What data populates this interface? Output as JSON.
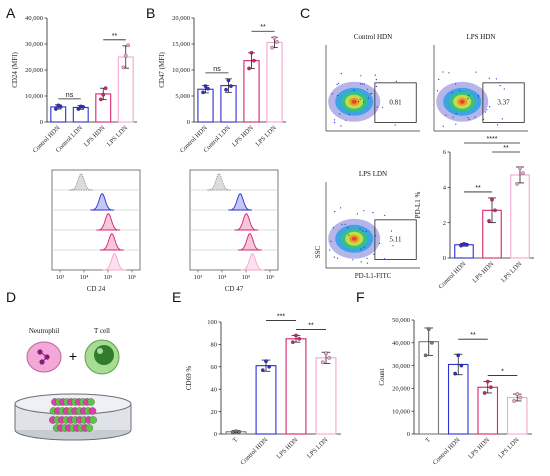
{
  "panels": {
    "A": "A",
    "B": "B",
    "C": "C",
    "D": "D",
    "E": "E",
    "F": "F"
  },
  "colors": {
    "control_hdn": "#2b2fd6",
    "lps_hdn": "#d6246e",
    "lps_ldn": "#f4a6d0",
    "t": "#7a7a7a"
  },
  "chart_data": [
    {
      "id": "A",
      "type": "bar",
      "ylabel": "CD24 (MFI)",
      "ylim": [
        0,
        40000
      ],
      "yticks": [
        "0",
        "10,000",
        "20,000",
        "30,000",
        "40,000"
      ],
      "categories": [
        "Control HDN",
        "Control LDN",
        "LPS HDN",
        "LPS LDN"
      ],
      "values": [
        5800,
        5600,
        10800,
        25000
      ],
      "errors": [
        800,
        700,
        2200,
        4300
      ],
      "points": [
        [
          5000,
          6400,
          5900
        ],
        [
          5000,
          6000,
          5800
        ],
        [
          8700,
          10500,
          13000
        ],
        [
          21000,
          25500,
          29500
        ]
      ],
      "significance": [
        {
          "from": 0,
          "to": 1,
          "label": "ns"
        },
        {
          "from": 2,
          "to": 3,
          "label": "**"
        }
      ]
    },
    {
      "id": "B",
      "type": "bar",
      "ylabel": "CD47 (MFI)",
      "ylim": [
        0,
        20000
      ],
      "yticks": [
        "0",
        "5,000",
        "10,000",
        "15,000",
        "20,000"
      ],
      "categories": [
        "Control HDN",
        "Control LDN",
        "LPS HDN",
        "LPS LDN"
      ],
      "values": [
        6300,
        7000,
        11800,
        15300
      ],
      "errors": [
        700,
        1300,
        1500,
        1000
      ],
      "points": [
        [
          5700,
          6900,
          6400
        ],
        [
          6200,
          8000,
          6900
        ],
        [
          10300,
          13300,
          11800
        ],
        [
          14300,
          16200,
          15400
        ]
      ],
      "significance": [
        {
          "from": 0,
          "to": 1,
          "label": "ns"
        },
        {
          "from": 2,
          "to": 3,
          "label": "**"
        }
      ]
    },
    {
      "id": "A-hist",
      "type": "histogram",
      "xlabel": "CD 24",
      "xticks": [
        "10³",
        "10⁴",
        "10⁵",
        "10⁶"
      ]
    },
    {
      "id": "B-hist",
      "type": "histogram",
      "xlabel": "CD 47",
      "xticks": [
        "10³",
        "10⁴",
        "10⁵",
        "10⁶"
      ]
    },
    {
      "id": "C-flow",
      "type": "scatter",
      "xlabel": "PD-L1-FITC",
      "ylabel": "SSC",
      "plots": [
        {
          "title": "Control HDN",
          "gate": "0.81"
        },
        {
          "title": "LPS HDN",
          "gate": "3.37"
        },
        {
          "title": "LPS LDN",
          "gate": "5.11"
        }
      ]
    },
    {
      "id": "C",
      "type": "bar",
      "ylabel": "PD-L1 %",
      "ylim": [
        0,
        6
      ],
      "yticks": [
        "0",
        "2",
        "4",
        "6"
      ],
      "categories": [
        "Control HDN",
        "LPS HDN",
        "LPS LDN"
      ],
      "values": [
        0.75,
        2.7,
        4.7
      ],
      "errors": [
        0.08,
        0.7,
        0.45
      ],
      "points": [
        [
          0.7,
          0.8,
          0.75
        ],
        [
          2.1,
          3.3,
          2.7
        ],
        [
          4.2,
          5.1,
          4.8
        ]
      ],
      "significance": [
        {
          "from": 0,
          "to": 1,
          "label": "**",
          "level": 0
        },
        {
          "from": 1,
          "to": 2,
          "label": "**",
          "level": 1
        },
        {
          "from": 0,
          "to": 2,
          "label": "****",
          "level": 2
        }
      ]
    },
    {
      "id": "E",
      "type": "bar",
      "ylabel": "CD69 %",
      "ylim": [
        0,
        100
      ],
      "yticks": [
        "0",
        "20",
        "40",
        "60",
        "80",
        "100"
      ],
      "categories": [
        "T",
        "Control HDN",
        "LPS HDN",
        "LPS LDN"
      ],
      "values": [
        2,
        61,
        85,
        68
      ],
      "errors": [
        1,
        5,
        3,
        5
      ],
      "points": [
        [
          1.5,
          2.5,
          2
        ],
        [
          57,
          65,
          60
        ],
        [
          82,
          88,
          85
        ],
        [
          64,
          72,
          68
        ]
      ],
      "significance": [
        {
          "from": 1,
          "to": 2,
          "label": "***",
          "level": 1
        },
        {
          "from": 2,
          "to": 3,
          "label": "**",
          "level": 0
        }
      ]
    },
    {
      "id": "F",
      "type": "bar",
      "ylabel": "Count",
      "ylim": [
        0,
        50000
      ],
      "yticks": [
        "0",
        "10,000",
        "20,000",
        "30,000",
        "40,000",
        "50,000"
      ],
      "categories": [
        "T",
        "Control HDN",
        "LPS HDN",
        "LPS LDN"
      ],
      "values": [
        40500,
        30500,
        20500,
        16000
      ],
      "errors": [
        6000,
        4500,
        2500,
        1500
      ],
      "points": [
        [
          34500,
          46000,
          40000
        ],
        [
          26500,
          34500,
          30000
        ],
        [
          18000,
          23000,
          20500
        ],
        [
          14500,
          17500,
          16000
        ]
      ],
      "significance": [
        {
          "from": 1,
          "to": 2,
          "label": "**",
          "level": 1
        },
        {
          "from": 2,
          "to": 3,
          "label": "*",
          "level": 0
        }
      ]
    }
  ],
  "schematic": {
    "neutrophil": "Neutrophil",
    "plus": "+",
    "tcell": "T cell"
  }
}
